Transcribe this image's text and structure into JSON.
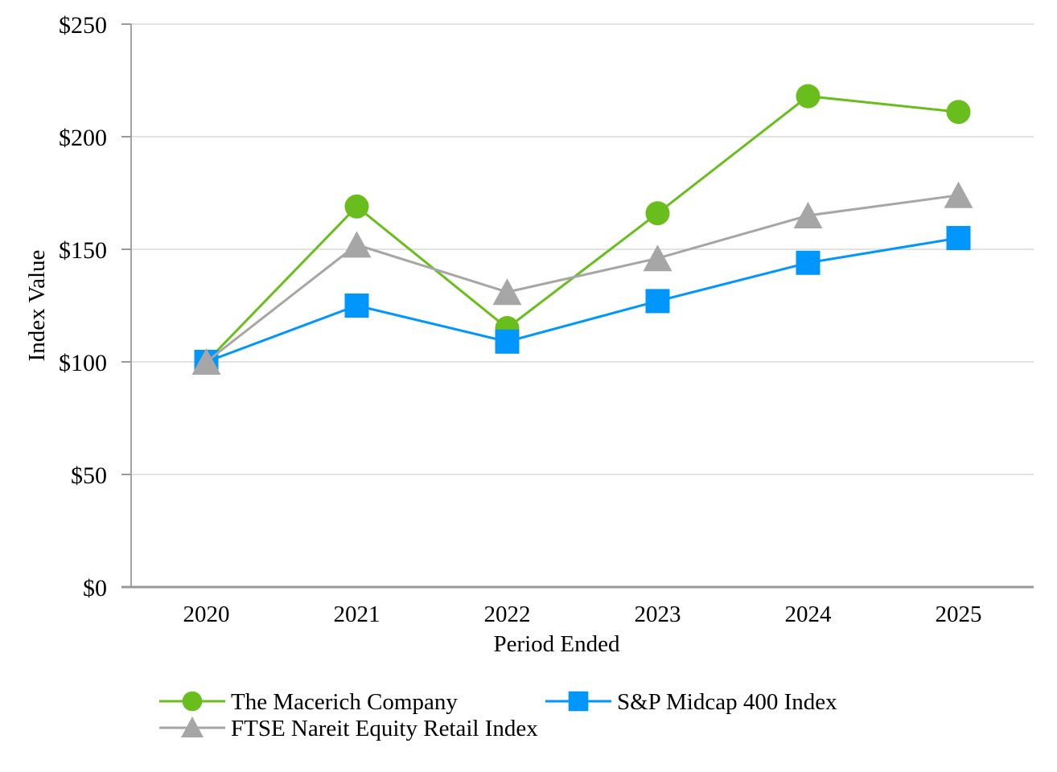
{
  "chart_data": {
    "type": "line",
    "title": "",
    "xlabel": "Period Ended",
    "ylabel": "Index Value",
    "categories": [
      "2020",
      "2021",
      "2022",
      "2023",
      "2024",
      "2025"
    ],
    "series": [
      {
        "id": "macerich",
        "name": "The Macerich Company",
        "marker": "circle",
        "color": "#69BE1E",
        "values": [
          100,
          169,
          115,
          166,
          218,
          211
        ]
      },
      {
        "id": "sp-midcap-400",
        "name": "S&P Midcap 400 Index",
        "marker": "square",
        "color": "#0096FC",
        "values": [
          100,
          125,
          109,
          127,
          144,
          155
        ]
      },
      {
        "id": "ftse-nareit-equity-retail",
        "name": "FTSE Nareit Equity Retail Index",
        "marker": "triangle",
        "color": "#A6A6A6",
        "values": [
          100,
          152,
          131,
          146,
          165,
          174
        ]
      }
    ],
    "ylim": [
      0,
      250
    ],
    "y_tick_step": 50,
    "y_tick_labels": [
      "$0",
      "$50",
      "$100",
      "$150",
      "$200",
      "$250"
    ],
    "grid": "horizontal-only",
    "legend_position": "bottom",
    "colors": {
      "gridline": "#D9D9D9",
      "axis": "#999999",
      "text": "#000000",
      "background": "#FFFFFF"
    }
  }
}
